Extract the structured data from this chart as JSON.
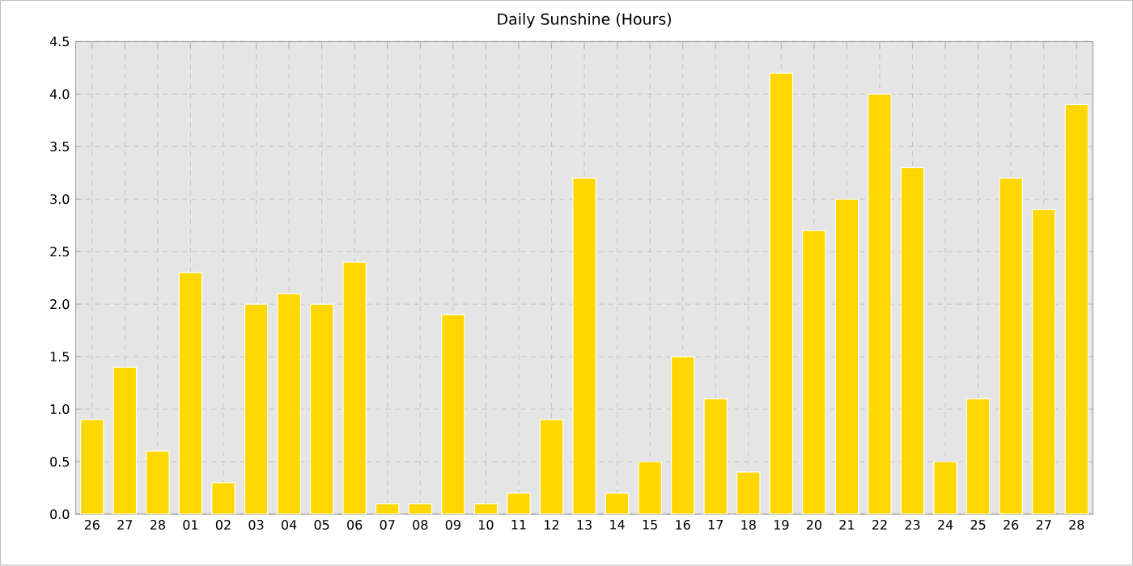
{
  "chart_data": {
    "type": "bar",
    "title": "Daily Sunshine (Hours)",
    "categories": [
      "26",
      "27",
      "28",
      "01",
      "02",
      "03",
      "04",
      "05",
      "06",
      "07",
      "08",
      "09",
      "10",
      "11",
      "12",
      "13",
      "14",
      "15",
      "16",
      "17",
      "18",
      "19",
      "20",
      "21",
      "22",
      "23",
      "24",
      "25",
      "26",
      "27",
      "28"
    ],
    "values": [
      0.9,
      1.4,
      0.6,
      2.3,
      0.3,
      2.0,
      2.1,
      2.0,
      2.4,
      0.1,
      0.1,
      1.9,
      0.1,
      0.2,
      0.9,
      3.2,
      0.2,
      0.5,
      1.5,
      1.1,
      0.4,
      4.2,
      2.7,
      3.0,
      4.0,
      3.3,
      0.5,
      1.1,
      3.2,
      2.9,
      3.9
    ],
    "color": "#ffd700",
    "ylim": [
      0,
      4.5
    ],
    "yticks": [
      {
        "value": 0,
        "label": "0.0"
      },
      {
        "value": 0.5,
        "label": "0.5"
      },
      {
        "value": 1,
        "label": "1.0"
      },
      {
        "value": 1.5,
        "label": "1.5"
      },
      {
        "value": 2,
        "label": "2.0"
      },
      {
        "value": 2.5,
        "label": "2.5"
      },
      {
        "value": 3,
        "label": "3.0"
      },
      {
        "value": 3.5,
        "label": "3.5"
      },
      {
        "value": 4,
        "label": "4.0"
      },
      {
        "value": 4.5,
        "label": "4.5"
      }
    ],
    "grid": true
  }
}
